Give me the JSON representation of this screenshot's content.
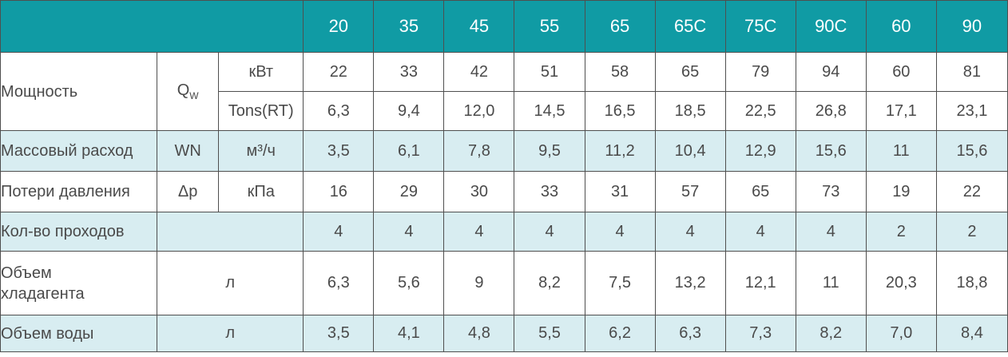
{
  "header": {
    "models": [
      "20",
      "35",
      "45",
      "55",
      "65",
      "65C",
      "75C",
      "90C",
      "60",
      "90"
    ]
  },
  "rows": {
    "power": {
      "label": "Мощность",
      "symbol_main": "Q",
      "symbol_sub": "W",
      "kw": {
        "unit": "кВт",
        "values": [
          "22",
          "33",
          "42",
          "51",
          "58",
          "65",
          "79",
          "94",
          "60",
          "81"
        ]
      },
      "tons": {
        "unit": "Tons(RT)",
        "values": [
          "6,3",
          "9,4",
          "12,0",
          "14,5",
          "16,5",
          "18,5",
          "22,5",
          "26,8",
          "17,1",
          "23,1"
        ]
      }
    },
    "mass_flow": {
      "label": "Массовый расход",
      "symbol": "WN",
      "unit": "м³/ч",
      "values": [
        "3,5",
        "6,1",
        "7,8",
        "9,5",
        "11,2",
        "10,4",
        "12,9",
        "15,6",
        "11",
        "15,6"
      ]
    },
    "pressure_loss": {
      "label": "Потери давления",
      "symbol": "Δp",
      "unit": "кПа",
      "values": [
        "16",
        "29",
        "30",
        "33",
        "31",
        "57",
        "65",
        "73",
        "19",
        "22"
      ]
    },
    "passes": {
      "label": "Кол-во проходов",
      "values": [
        "4",
        "4",
        "4",
        "4",
        "4",
        "4",
        "4",
        "4",
        "2",
        "2"
      ]
    },
    "refrigerant": {
      "label_line1": "Объем",
      "label_line2": "хладагента",
      "unit": "л",
      "values": [
        "6,3",
        "5,6",
        "9",
        "8,2",
        "7,5",
        "13,2",
        "12,1",
        "11",
        "20,3",
        "18,8"
      ]
    },
    "water": {
      "label": "Объем воды",
      "unit": "л",
      "values": [
        "3,5",
        "4,1",
        "4,8",
        "5,5",
        "6,2",
        "6,3",
        "7,3",
        "8,2",
        "7,0",
        "8,4"
      ]
    }
  },
  "colors": {
    "header_bg": "#109ba4",
    "row_blue": "#d8edf1",
    "text": "#4a4a4a"
  }
}
